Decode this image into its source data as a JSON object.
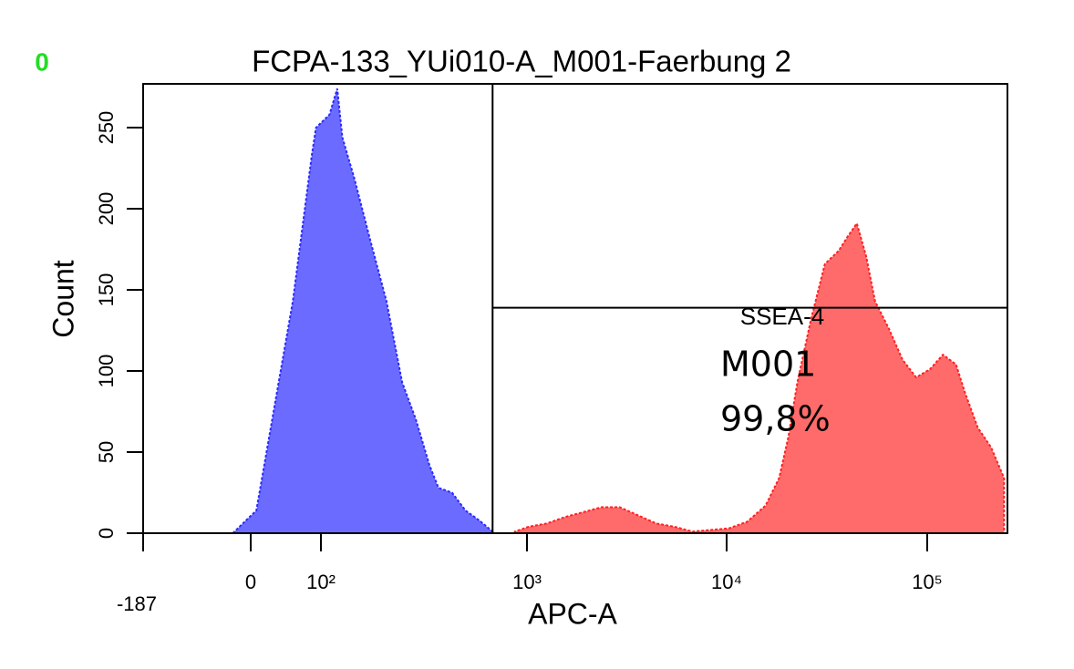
{
  "chart_data": {
    "type": "histogram",
    "marker": "0",
    "title": "FCPA-133_YUi010-A_M001-Faerbung 2",
    "x_label": "APC-A",
    "y_label": "Count",
    "xscale": "biexponential",
    "xlim": [
      -187,
      262144
    ],
    "xticks": [
      -187,
      0,
      {
        "value": 100,
        "label": "10²"
      },
      {
        "value": 1000,
        "label": "10³"
      },
      {
        "value": 10000,
        "label": "10⁴"
      },
      {
        "value": 100000,
        "label": "10⁵"
      }
    ],
    "ylim": [
      0,
      277
    ],
    "yticks": [
      0,
      50,
      100,
      150,
      200,
      250
    ],
    "series": [
      {
        "color": "#6b6bff",
        "edge": "#2a2aff",
        "x": [
          -31,
          -8,
          8,
          33,
          60,
          87,
          93,
          110,
          120,
          127,
          145,
          174,
          208,
          248,
          289,
          336,
          372,
          433,
          503,
          586,
          681
        ],
        "values": [
          0,
          8,
          14,
          76,
          143,
          233,
          250,
          258,
          274,
          244,
          219,
          180,
          143,
          93,
          70,
          42,
          28,
          25,
          14,
          8,
          1
        ]
      },
      {
        "color": "#ff6b6b",
        "edge": "#ff2020",
        "x": [
          873,
          1021,
          1259,
          1552,
          1915,
          2363,
          2915,
          3597,
          4437,
          5472,
          6752,
          10256,
          12650,
          15630,
          18280,
          20300,
          22540,
          26370,
          30900,
          36140,
          40180,
          44570,
          49550,
          54950,
          64420,
          75340,
          88130,
          103200,
          120800,
          141300,
          157000,
          183700,
          215300,
          251800
        ],
        "values": [
          1,
          4,
          6,
          10,
          13,
          16,
          16,
          11,
          6,
          4,
          1,
          3,
          7,
          17,
          34,
          59,
          93,
          132,
          166,
          174,
          183,
          191,
          171,
          143,
          126,
          107,
          96,
          101,
          110,
          104,
          87,
          65,
          53,
          34
        ]
      }
    ],
    "gate": {
      "name": "SSEA-4",
      "range": [
        681,
        262144
      ],
      "level": 139,
      "label": "M001",
      "percent": "99,8%"
    }
  }
}
